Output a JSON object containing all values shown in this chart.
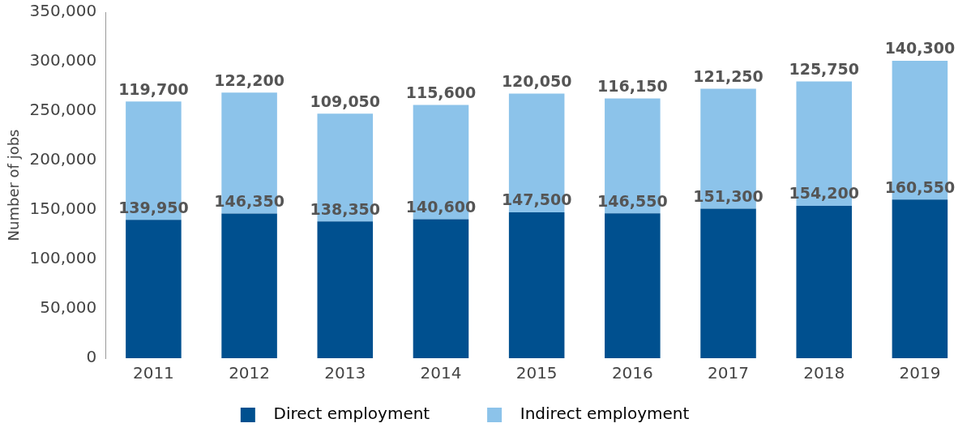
{
  "chart_data": {
    "type": "bar",
    "stacked": true,
    "ylabel": "Number of jobs",
    "categories": [
      "2011",
      "2012",
      "2013",
      "2014",
      "2015",
      "2016",
      "2017",
      "2018",
      "2019"
    ],
    "series": [
      {
        "name": "Direct employment",
        "color": "#00508f",
        "values": [
          139950,
          146350,
          138350,
          140600,
          147500,
          146550,
          151300,
          154200,
          160550
        ],
        "value_labels": [
          "139,950",
          "146,350",
          "138,350",
          "140,600",
          "147,500",
          "146,550",
          "151,300",
          "154,200",
          "160,550"
        ]
      },
      {
        "name": "Indirect employment",
        "color": "#8cc3ea",
        "values": [
          119700,
          122200,
          109050,
          115600,
          120050,
          116150,
          121250,
          125750,
          140300
        ],
        "value_labels": [
          "119,700",
          "122,200",
          "109,050",
          "115,600",
          "120,050",
          "116,150",
          "121,250",
          "125,750",
          "140,300"
        ]
      }
    ],
    "ylim": [
      0,
      350000
    ],
    "yticks": [
      0,
      {
        "value": 50000,
        "label": "50,000"
      },
      {
        "value": 100000,
        "label": "100,000"
      },
      {
        "value": 150000,
        "label": "150,000"
      },
      {
        "value": 200000,
        "label": "200,000"
      },
      {
        "value": 250000,
        "label": "250,000"
      },
      {
        "value": 300000,
        "label": "300,000"
      },
      {
        "value": 350000,
        "label": "350,000"
      }
    ],
    "grid": false,
    "legend": "bottom"
  }
}
